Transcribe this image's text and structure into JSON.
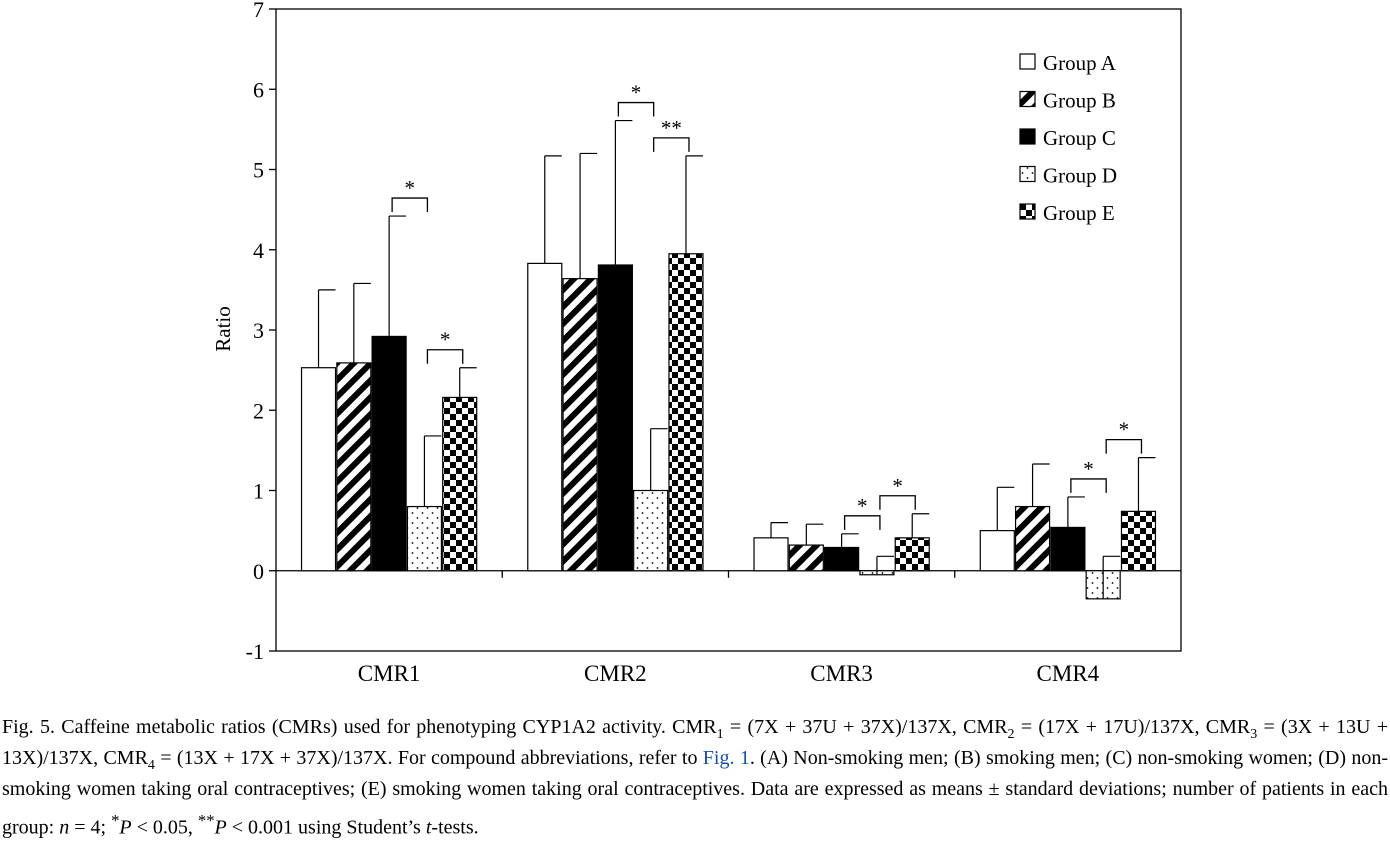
{
  "chart_data": {
    "type": "bar",
    "ylabel": "Ratio",
    "ylim": [
      -1,
      7
    ],
    "yticks": [
      -1,
      0,
      1,
      2,
      3,
      4,
      5,
      6,
      7
    ],
    "categories": [
      "CMR1",
      "CMR2",
      "CMR3",
      "CMR4"
    ],
    "legend_position": "top-right",
    "grid": false,
    "series": [
      {
        "name": "Group A",
        "pattern": "open",
        "values": [
          2.53,
          3.83,
          0.41,
          0.5
        ],
        "sd": [
          0.97,
          1.34,
          0.19,
          0.54
        ]
      },
      {
        "name": "Group B",
        "pattern": "diagonal-hatch",
        "values": [
          2.59,
          3.64,
          0.32,
          0.8
        ],
        "sd": [
          0.99,
          1.56,
          0.26,
          0.53
        ]
      },
      {
        "name": "Group C",
        "pattern": "solid",
        "values": [
          2.92,
          3.81,
          0.29,
          0.54
        ],
        "sd": [
          1.5,
          1.8,
          0.17,
          0.38
        ]
      },
      {
        "name": "Group D",
        "pattern": "dotted",
        "values": [
          0.8,
          1.0,
          -0.05,
          -0.35
        ],
        "sd": [
          0.88,
          0.77,
          0.23,
          0.53
        ]
      },
      {
        "name": "Group E",
        "pattern": "checkerboard",
        "values": [
          2.16,
          3.95,
          0.41,
          0.74
        ],
        "sd": [
          0.37,
          1.22,
          0.3,
          0.67
        ]
      }
    ],
    "significance": [
      {
        "category": 0,
        "from": 2,
        "to": 3,
        "label": "*"
      },
      {
        "category": 0,
        "from": 3,
        "to": 4,
        "label": "*"
      },
      {
        "category": 1,
        "from": 2,
        "to": 3,
        "label": "*"
      },
      {
        "category": 1,
        "from": 3,
        "to": 4,
        "label": "**"
      },
      {
        "category": 2,
        "from": 2,
        "to": 3,
        "label": "*"
      },
      {
        "category": 2,
        "from": 3,
        "to": 4,
        "label": "*"
      },
      {
        "category": 3,
        "from": 2,
        "to": 3,
        "label": "*"
      },
      {
        "category": 3,
        "from": 3,
        "to": 4,
        "label": "*"
      }
    ]
  },
  "caption": {
    "p1": "Fig. 5. Caffeine metabolic ratios (CMRs) used for phenotyping CYP1A2 activity. CMR",
    "s1": "1",
    "p2": " = (7X + 37U + 37X)/137X, CMR",
    "s2": "2",
    "p3": " = (17X + 17U)/137X, CMR",
    "s3": "3",
    "p4": " = (3X + 13U + 13X)/137X, CMR",
    "s4": "4",
    "p5": " = (13X + 17X + 37X)/137X. For compound abbreviations, refer to ",
    "link": "Fig. 1",
    "p6": ". (A) Non-smoking men; (B) smoking men; (C) non-smoking women; (D) non-smoking women taking oral contraceptives; (E) smoking women taking oral contraceptives. Data are expressed as means ± standard deviations; number of patients in each group: ",
    "n_var": "n",
    "p7": " = 4; ",
    "star1": "*",
    "p_var1": "P",
    "p8": " < 0.05, ",
    "star2": "**",
    "p_var2": "P",
    "p9": " < 0.001 using Student’s ",
    "t_var": "t",
    "p10": "-tests."
  }
}
